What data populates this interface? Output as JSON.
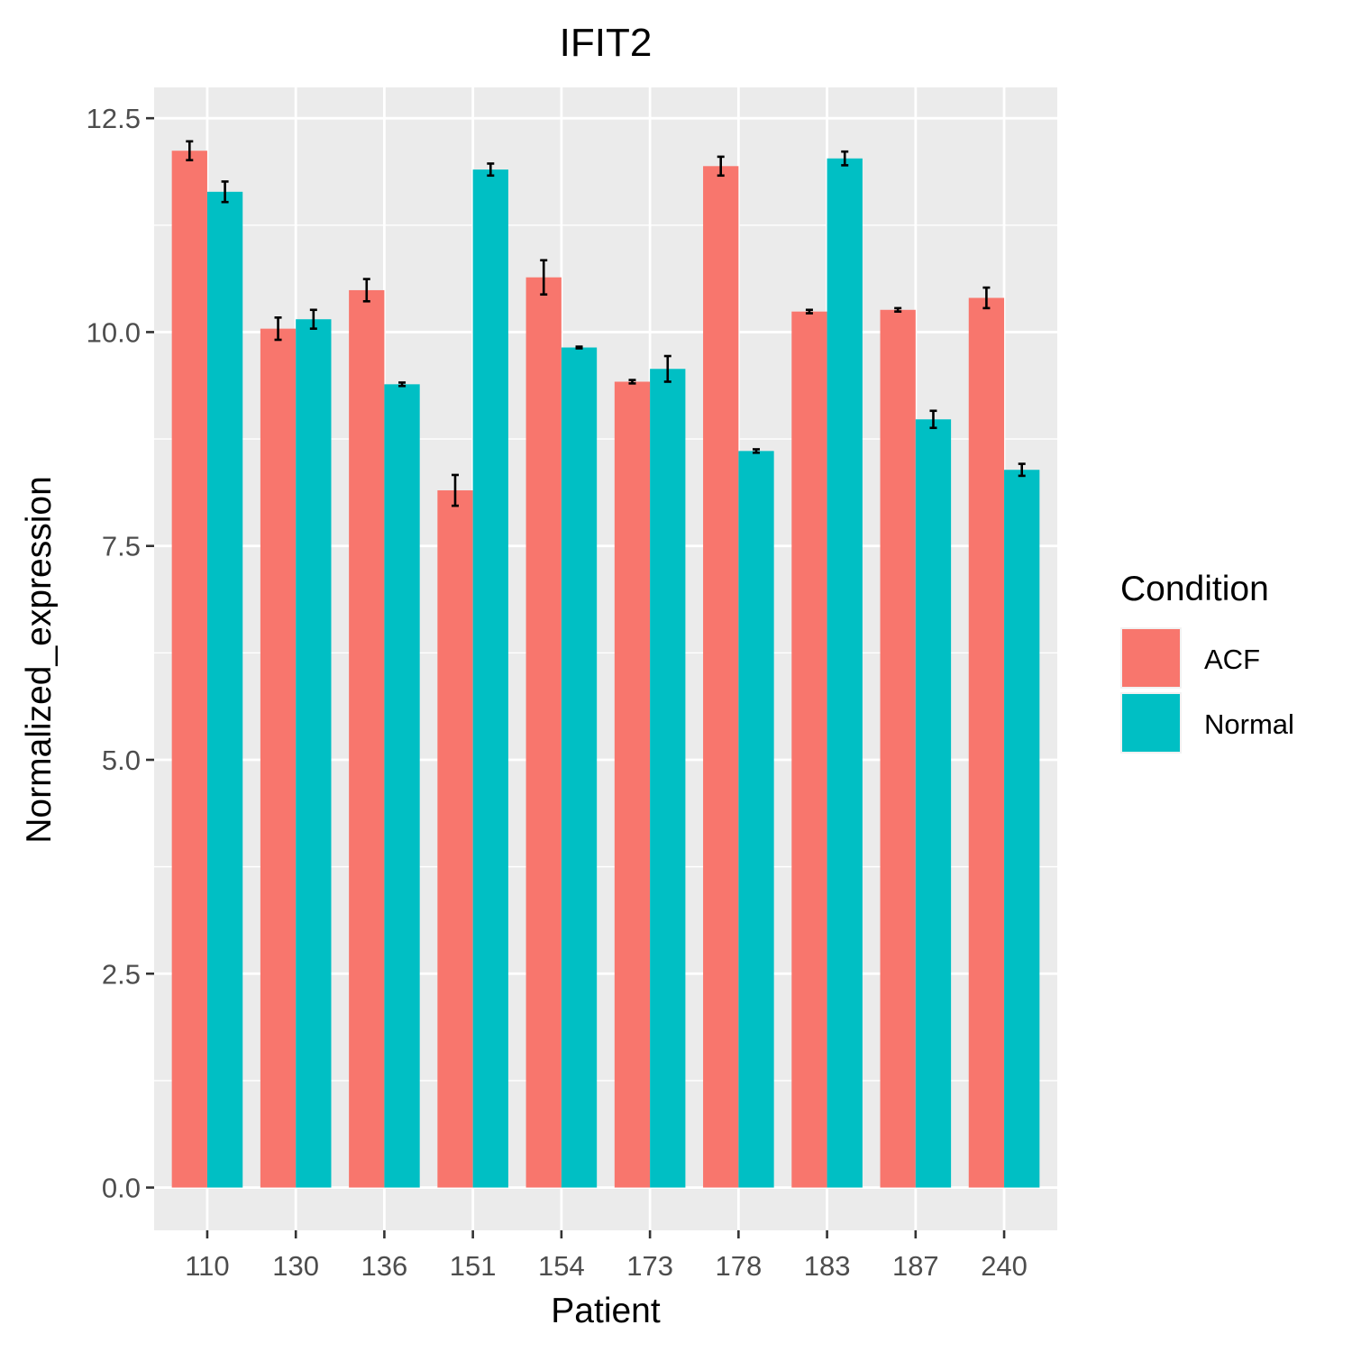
{
  "chart_data": {
    "type": "bar",
    "title": "IFIT2",
    "xlabel": "Patient",
    "ylabel": "Normalized_expression",
    "categories": [
      "110",
      "130",
      "136",
      "151",
      "154",
      "173",
      "178",
      "183",
      "187",
      "240"
    ],
    "series": [
      {
        "name": "ACF",
        "color": "#F8766D",
        "values": [
          12.12,
          10.04,
          10.49,
          8.15,
          10.64,
          9.42,
          11.94,
          10.24,
          10.26,
          10.4
        ],
        "error": [
          0.11,
          0.13,
          0.13,
          0.18,
          0.2,
          0.02,
          0.11,
          0.02,
          0.02,
          0.12
        ]
      },
      {
        "name": "Normal",
        "color": "#00BFC4",
        "values": [
          11.64,
          10.15,
          9.39,
          11.9,
          9.82,
          9.57,
          8.61,
          12.03,
          8.98,
          8.39
        ],
        "error": [
          0.12,
          0.11,
          0.02,
          0.07,
          0.01,
          0.15,
          0.02,
          0.08,
          0.1,
          0.07
        ]
      }
    ],
    "ylim": [
      -0.5,
      12.86
    ],
    "yticks": [
      "0.0",
      "2.5",
      "5.0",
      "7.5",
      "10.0",
      "12.5"
    ],
    "grid": true,
    "panel_background": "#EBEBEB",
    "legend": {
      "title": "Condition",
      "position": "right",
      "entries": [
        "ACF",
        "Normal"
      ]
    }
  }
}
